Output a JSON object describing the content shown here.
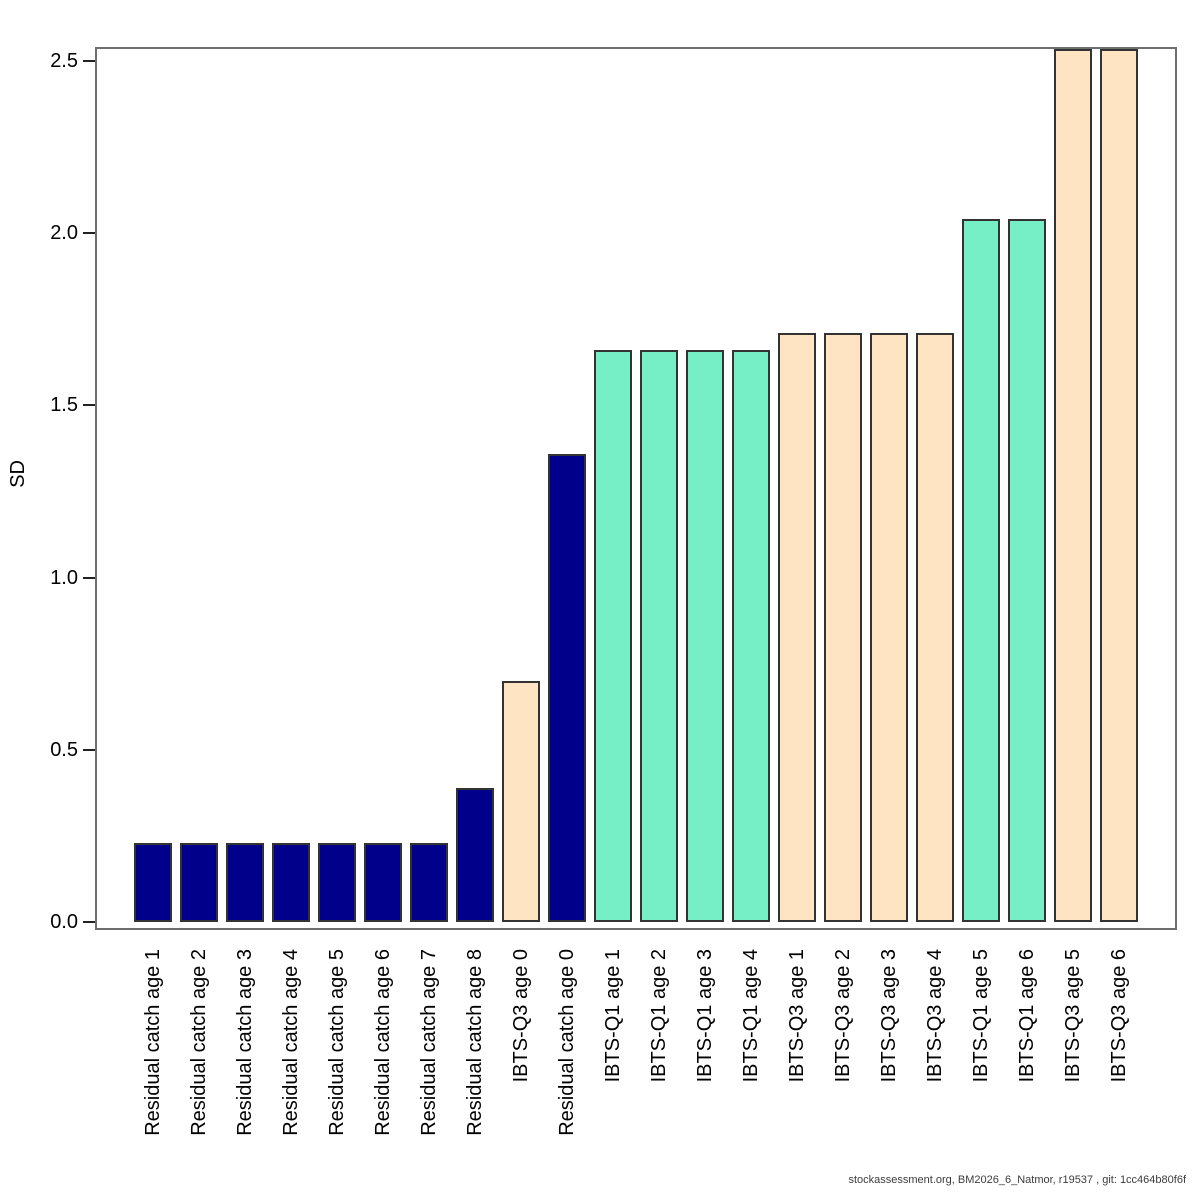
{
  "chart_data": {
    "type": "bar",
    "title": "",
    "xlabel": "",
    "ylabel": "SD",
    "ylim": [
      0,
      2.5
    ],
    "ytick_labels": [
      "0.0",
      "0.5",
      "1.0",
      "1.5",
      "2.0",
      "2.5"
    ],
    "grid": false,
    "legend_position": "none",
    "categories": [
      "Residual catch age 1",
      "Residual catch age 2",
      "Residual catch age 3",
      "Residual catch age 4",
      "Residual catch age 5",
      "Residual catch age 6",
      "Residual catch age 7",
      "Residual catch age 8",
      "IBTS-Q3 age 0",
      "Residual catch age 0",
      "IBTS-Q1 age 1",
      "IBTS-Q1 age 2",
      "IBTS-Q1 age 3",
      "IBTS-Q1 age 4",
      "IBTS-Q3 age 1",
      "IBTS-Q3 age 2",
      "IBTS-Q3 age 3",
      "IBTS-Q3 age 4",
      "IBTS-Q1 age 5",
      "IBTS-Q1 age 6",
      "IBTS-Q3 age 5",
      "IBTS-Q3 age 6"
    ],
    "values": [
      0.23,
      0.23,
      0.23,
      0.23,
      0.23,
      0.23,
      0.23,
      0.39,
      0.7,
      1.36,
      1.66,
      1.66,
      1.66,
      1.66,
      1.71,
      1.71,
      1.71,
      1.71,
      2.04,
      2.04,
      2.54,
      2.54
    ],
    "bar_colors": [
      "#00008B",
      "#00008B",
      "#00008B",
      "#00008B",
      "#00008B",
      "#00008B",
      "#00008B",
      "#00008B",
      "#FFE4C4",
      "#00008B",
      "#76EEC6",
      "#76EEC6",
      "#76EEC6",
      "#76EEC6",
      "#FFE4C4",
      "#FFE4C4",
      "#FFE4C4",
      "#FFE4C4",
      "#76EEC6",
      "#76EEC6",
      "#FFE4C4",
      "#FFE4C4"
    ],
    "group_colors": {
      "Residual catch": "#00008B",
      "IBTS-Q1": "#76EEC6",
      "IBTS-Q3": "#FFE4C4"
    },
    "bars_clipped_at_plot_top": [
      "IBTS-Q3 age 5",
      "IBTS-Q3 age 6"
    ]
  },
  "footer": {
    "attribution": "stockassessment.org, BM2026_6_Natmor, r19537 , git: 1cc464b80f6f"
  }
}
